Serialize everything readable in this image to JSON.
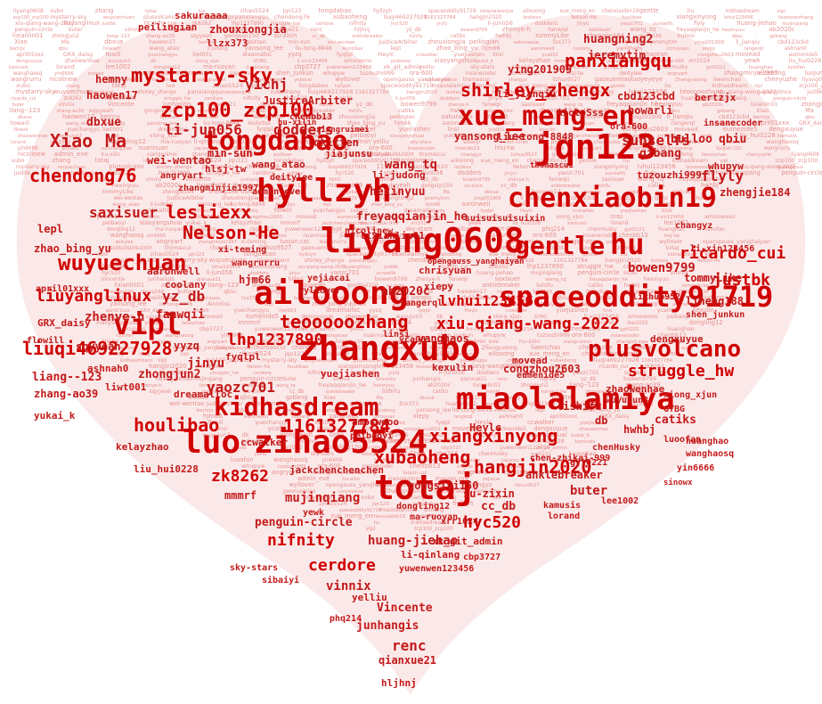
{
  "colors": {
    "word": "#d00000",
    "word_dim": "#c41a1a",
    "word_light": "#e07070",
    "heart_fill": "#fbe9e9",
    "background": "#ffffff"
  },
  "words": {
    "w01": "liyang0608",
    "w02": "xubo",
    "w03": "zhang",
    "w04": "totaj",
    "w05": "luo",
    "w06": "zihao5524",
    "w07": "jqn123",
    "w08": "tongdabao",
    "w09": "hyllzyh",
    "w10": "spaceoddity91719",
    "w11": "miaolalamiya",
    "w12": "ailooong",
    "w13": "xue_meng_en",
    "w14": "chenxiaobin19",
    "w15": "gentle",
    "w16": "hu",
    "w17": "kidhasdream",
    "w18": "vipl",
    "w19": "zcp100_zcp100",
    "w20": "mystarry-sky",
    "w21": "wuyuechuan",
    "w22": "plusvolcano",
    "w23": "shirley_zhengx",
    "w24": "panxiangqu",
    "w25": "chendong76",
    "w26": "xubaoheng",
    "w27": "liuqi469227928",
    "w28": "1161327784",
    "w29": "hangjin2020",
    "w30": "lesliexx",
    "w31": "Nelson-He",
    "w32": "houlibao",
    "w33": "xiangxinyong",
    "w34": "lvhui123456",
    "w35": "teooooozhang",
    "w36": "xiu-qiang-wang-2022",
    "w37": "liuyanglinux",
    "w38": "justbk",
    "w39": "ricardo_cui",
    "w40": "zk8262",
    "w41": "lhp1237890",
    "w42": "struggle_hw",
    "w43": "cerdore",
    "w44": "nifnity",
    "w45": "hyc520",
    "w46": "yichj",
    "w47": "li-jun056",
    "w48": "dodders",
    "w49": "jinyu",
    "w50": "yaozc701",
    "w51": "sunselfs",
    "w52": "flyly",
    "w53": "huang-jiehao",
    "w54": "mujinqiang",
    "w55": "penguin-circle",
    "w56": "buter",
    "w57": "vinnix",
    "w58": "Vincente",
    "w59": "junhangis",
    "w60": "qianxue21",
    "w61": "renc",
    "w62": "hljhnj",
    "w63": "yz_db",
    "w64": "bowen9799",
    "w65": "zhenye-h",
    "w66": "fanwqii",
    "w67": "saxisuer",
    "w68": "wang_tq",
    "w69": "freyaqqianjin_he",
    "w70": "hexinyuu",
    "w71": "ab2020c",
    "w72": "lixianlin01",
    "w73": "zhongjun2",
    "w74": "liang--123",
    "w75": "zhang-ao39",
    "w76": "sqyyeah",
    "w77": "gongsiyi150",
    "w78": "su-zixin",
    "w79": "cc_db",
    "w80": "anklebreaker",
    "w81": "lishifu",
    "w82": "catiks",
    "w83": "hwhbj",
    "w84": "tommyLike",
    "w85": "zhengjie184",
    "w86": "liheng188",
    "w87": "bulloo",
    "w88": "qbiu",
    "w89": "gzbang",
    "w90": "Xiao",
    "w91": "Ma",
    "w92": "dbxue",
    "w93": "haowen17",
    "w94": "hemny",
    "w95": "lqkitten",
    "w96": "min-sun",
    "w97": "wei-wentao",
    "w98": "JusticeArbiter",
    "w99": "zhouxiongjia",
    "w100": "peilingian",
    "w101": "sakuraaaa",
    "w102": "llzx373",
    "w103": "huangning2",
    "w104": "jeremytim",
    "w105": "ying201909",
    "w106": "li_jianqiu",
    "w107": "cbd123cbd",
    "w108": "bertzjx",
    "w109": "qbiu",
    "w110": "howarli",
    "w111": "wang_atao",
    "w112": "li-judong",
    "w113": "yansong_lee",
    "w114": "liu-tong-8848",
    "w115": "AioloSss",
    "w116": "lepl",
    "w117": "zhao_bing_yu",
    "w118": "hjm66",
    "w119": "aaronwell",
    "w120": "coolany",
    "w121": "yanghaos",
    "w122": "chrisyuan",
    "w123": "xiepy",
    "w124": "rangerql",
    "w125": "ashnah0",
    "w126": "april01xxx",
    "w127": "GRX_daisy",
    "w128": "flowill",
    "w129": "yuechangyu",
    "w130": "liwt001",
    "w131": "dreamalloc",
    "w132": "yyzq",
    "w133": "fyqlpl",
    "w134": "Heylc",
    "w135": "ccwalker",
    "w136": "yuejiashen",
    "w137": "linsi",
    "w138": "yca001",
    "w139": "kexulin",
    "w140": "lichaoran",
    "w141": "congzhou2603",
    "w142": "movead",
    "w143": "eumenide5",
    "w144": "dengxuyue",
    "w145": "zhaowenhae",
    "w146": "wuyujun3",
    "w147": "db",
    "w148": "xiong_xjun",
    "w149": "GYBG",
    "w150": "li-xin123456",
    "w151": "amoswooo",
    "w152": "peibaoyi",
    "w153": "xiaoyangshuai",
    "w154": "yukai_k",
    "w155": "kelayzhao",
    "w156": "mmmrf",
    "w157": "jackchenchenchen",
    "w158": "chen-zhikai-999",
    "w159": "xrr1024",
    "w160": "yewk",
    "w161": "liu_hui0228",
    "w162": "kamusis",
    "w163": "lorand",
    "w164": "lee1002",
    "w165": "dongling12",
    "w166": "ma-ruoyan",
    "w167": "li-qinlang",
    "w168": "cbp3727",
    "w169": "yuwenwen123456",
    "w170": "xk_git_admin",
    "w171": "yelliu",
    "w172": "sky-stars",
    "w173": "sibaiyi",
    "w174": "Art-Chen",
    "w175": "phq214",
    "w176": "chenHusky",
    "w177": "gyt0221",
    "w178": "huanghao",
    "w179": "luoofan",
    "w180": "wanghaosq",
    "w181": "yin6666",
    "w182": "sinowx",
    "w183": "sunzhongxiao",
    "w184": "nuannuan",
    "w185": "jiajunsu",
    "w186": "shen_junkun",
    "w187": "whupyw",
    "w188": "tuzouzhi999",
    "w189": "ora-600",
    "w190": "insanecoder",
    "w191": "chenbb13",
    "w192": "hlsj-tw",
    "w193": "deitylee",
    "w194": "angryart",
    "w195": "zhangminjie1997",
    "w196": "xi-teming",
    "w197": "luojun.czc",
    "w198": "wangrurru",
    "w199": "nicolinew",
    "w200": "admin_eve",
    "w201": "hu-xilin",
    "w202": "xiangruimei",
    "w203": "zhangsir-zgw",
    "w204": "yejiacai",
    "w205": "wyllover",
    "w206": "opengauss_yanghaiyan",
    "w207": "suisuisuisuixin",
    "w208": "thomascui",
    "w209": "changyz",
    "w210": "lizhuo9527",
    "w211": "gaoxuemiao",
    "w212": "luoyeyeye",
    "w213": "Zhangyudong",
    "w214": "liwenchao",
    "w215": "chenyuzhe"
  }
}
